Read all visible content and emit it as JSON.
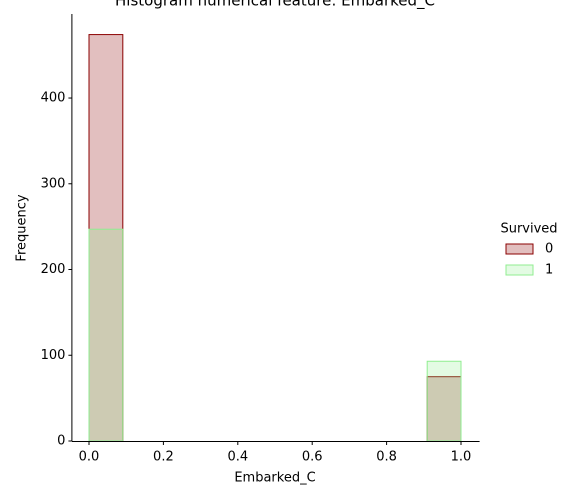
{
  "chart_data": {
    "type": "histogram",
    "title": "Histogram numerical feature: Embarked_C",
    "xlabel": "Embarked_C",
    "ylabel": "Frequency",
    "bins": [
      0,
      0.0909,
      0.1818,
      0.2727,
      0.3636,
      0.4545,
      0.5455,
      0.6364,
      0.7273,
      0.8182,
      0.9091,
      1
    ],
    "series": [
      {
        "name": "0",
        "color": "#8b0000",
        "values": [
          474,
          0,
          0,
          0,
          0,
          0,
          0,
          0,
          0,
          0,
          75
        ]
      },
      {
        "name": "1",
        "color": "#90ee90",
        "values": [
          247,
          0,
          0,
          0,
          0,
          0,
          0,
          0,
          0,
          0,
          93
        ]
      }
    ],
    "legend_title": "Survived",
    "xlim": [
      -0.05,
      1.05
    ],
    "ylim": [
      0,
      498
    ],
    "xticks": [
      {
        "value": 0,
        "label": "0.0"
      },
      {
        "value": 0.2,
        "label": "0.2"
      },
      {
        "value": 0.4,
        "label": "0.4"
      },
      {
        "value": 0.6,
        "label": "0.6"
      },
      {
        "value": 0.8,
        "label": "0.8"
      },
      {
        "value": 1,
        "label": "1.0"
      }
    ],
    "yticks": [
      0,
      100,
      200,
      300,
      400
    ],
    "legend": "right"
  }
}
